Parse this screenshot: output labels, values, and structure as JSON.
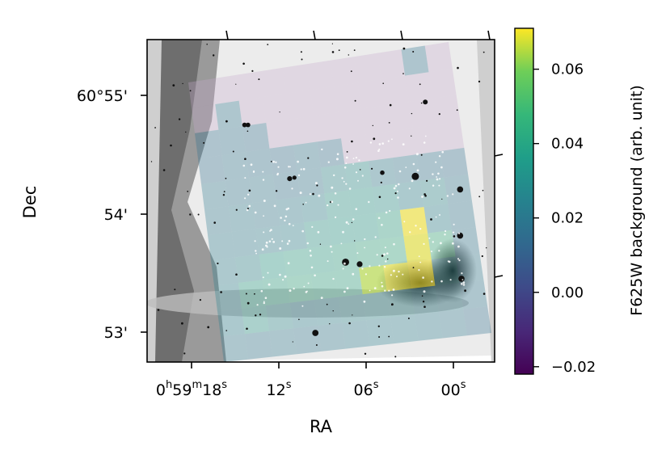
{
  "chart_data": {
    "type": "heatmap",
    "title": "",
    "xlabel": "RA",
    "ylabel": "Dec",
    "x_ticks": [
      {
        "h": "0",
        "m": "59",
        "s": "18",
        "value_s": 18
      },
      {
        "s": "12",
        "value_s": 12
      },
      {
        "s": "06",
        "value_s": 6
      },
      {
        "s": "00",
        "value_s": 0
      }
    ],
    "y_ticks": [
      {
        "label": "60°55'",
        "value_arcmin": 55
      },
      {
        "label": "54'",
        "value_arcmin": 54
      },
      {
        "label": "53'",
        "value_arcmin": 53
      }
    ],
    "colorbar": {
      "label": "F625W background (arb. unit)",
      "colormap": "viridis",
      "range": [
        -0.022,
        0.071
      ],
      "ticks": [
        "0.06",
        "0.04",
        "0.02",
        "0.00",
        "−0.02"
      ],
      "tick_values": [
        0.06,
        0.04,
        0.02,
        0.0,
        -0.02
      ]
    },
    "background_grid": {
      "rows": 11,
      "cols": 11,
      "values": [
        [
          0.005,
          0.005,
          0.006,
          0.004,
          0.006,
          0.007,
          0.008,
          0.009,
          0.009,
          0.013,
          0.004
        ],
        [
          0.01,
          0.014,
          0.007,
          0.005,
          0.004,
          0.007,
          0.006,
          0.005,
          0.007,
          0.003,
          0.004
        ],
        [
          0.012,
          0.013,
          0.012,
          0.011,
          0.01,
          0.007,
          0.005,
          0.006,
          0.007,
          0.005,
          0.006
        ],
        [
          0.012,
          0.014,
          0.013,
          0.012,
          0.014,
          0.012,
          0.008,
          0.007,
          0.006,
          0.008,
          0.007
        ],
        [
          0.016,
          0.015,
          0.016,
          0.013,
          0.015,
          0.022,
          0.024,
          0.017,
          0.015,
          0.013,
          0.012
        ],
        [
          0.016,
          0.017,
          0.016,
          0.017,
          0.02,
          0.027,
          0.028,
          0.026,
          0.02,
          0.022,
          0.014
        ],
        [
          0.017,
          0.017,
          0.018,
          0.02,
          0.027,
          0.029,
          0.029,
          0.033,
          0.07,
          0.02,
          0.014
        ],
        [
          0.018,
          0.021,
          0.03,
          0.032,
          0.031,
          0.033,
          0.035,
          0.036,
          0.068,
          0.038,
          0.015
        ],
        [
          0.02,
          0.031,
          0.033,
          0.035,
          0.034,
          0.034,
          0.06,
          0.068,
          0.07,
          0.022,
          0.016
        ],
        [
          0.019,
          0.027,
          0.022,
          0.019,
          0.02,
          0.021,
          0.022,
          0.022,
          0.02,
          0.018,
          0.015
        ],
        [
          0.016,
          0.015,
          0.016,
          0.015,
          0.016,
          0.017,
          0.018,
          0.018,
          0.017,
          0.016,
          0.012
        ]
      ]
    },
    "underlay": "greyscale sky image with stars",
    "grid": false,
    "legend": "none"
  },
  "colors": {
    "frame": "#000000",
    "nebula_dark": "#1a1a1a",
    "sky": "#f4f4f4",
    "source_points": "#ffffff"
  }
}
